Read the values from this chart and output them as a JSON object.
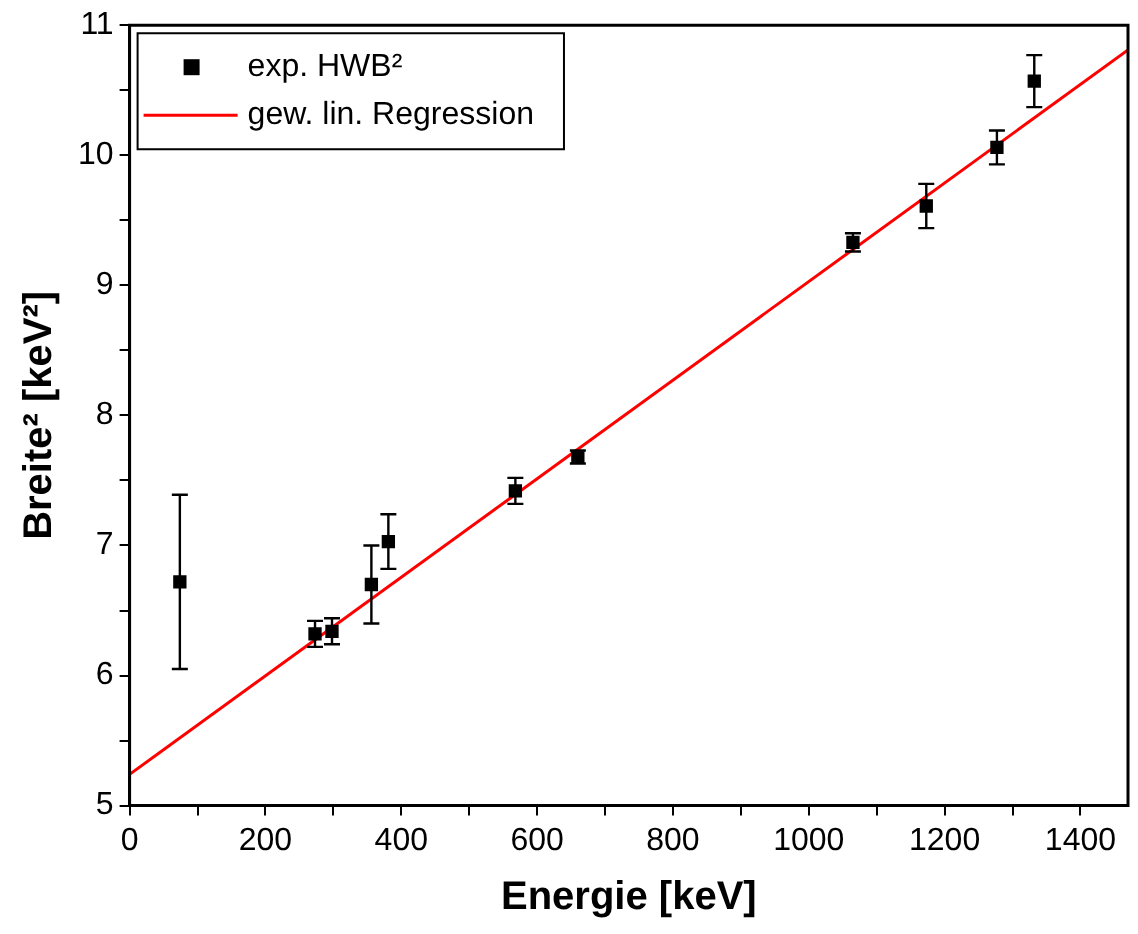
{
  "chart_data": {
    "type": "scatter",
    "xlabel": "Energie [keV]",
    "ylabel": "Breite² [keV²]",
    "xlim": [
      0,
      1470
    ],
    "ylim": [
      5,
      11
    ],
    "xticks": [
      0,
      {
        "value": 100,
        "label": null
      },
      200,
      {
        "value": 300,
        "label": null
      },
      400,
      {
        "value": 500,
        "label": null
      },
      600,
      {
        "value": 700,
        "label": null
      },
      800,
      {
        "value": 900,
        "label": null
      },
      1000,
      {
        "value": 1100,
        "label": null
      },
      1200,
      {
        "value": 1300,
        "label": null
      },
      1400
    ],
    "yticks": [
      5,
      {
        "value": 5.5,
        "label": null
      },
      6,
      {
        "value": 6.5,
        "label": null
      },
      7,
      {
        "value": 7.5,
        "label": null
      },
      8,
      {
        "value": 8.5,
        "label": null
      },
      9,
      {
        "value": 9.5,
        "label": null
      },
      10,
      {
        "value": 10.5,
        "label": null
      },
      11
    ],
    "grid": false,
    "legend": "top left",
    "series": [
      {
        "name": "exp. HWB²",
        "color": "#000000",
        "marker": "square",
        "x": [
          74,
          273,
          298,
          356,
          381,
          568,
          660,
          1065,
          1173,
          1277,
          1332
        ],
        "values": [
          6.72,
          6.32,
          6.34,
          6.7,
          7.03,
          7.42,
          7.68,
          9.33,
          9.61,
          10.06,
          10.57
        ],
        "errors": [
          0.67,
          0.1,
          0.1,
          0.3,
          0.21,
          0.1,
          0.05,
          0.07,
          0.17,
          0.13,
          0.2
        ]
      },
      {
        "name": "gew. lin. Regression",
        "type": "line",
        "color": "#ff0000",
        "marker": "none",
        "line_style": "solid",
        "x": [
          0,
          1470
        ],
        "values": [
          5.24,
          10.81
        ]
      }
    ]
  }
}
